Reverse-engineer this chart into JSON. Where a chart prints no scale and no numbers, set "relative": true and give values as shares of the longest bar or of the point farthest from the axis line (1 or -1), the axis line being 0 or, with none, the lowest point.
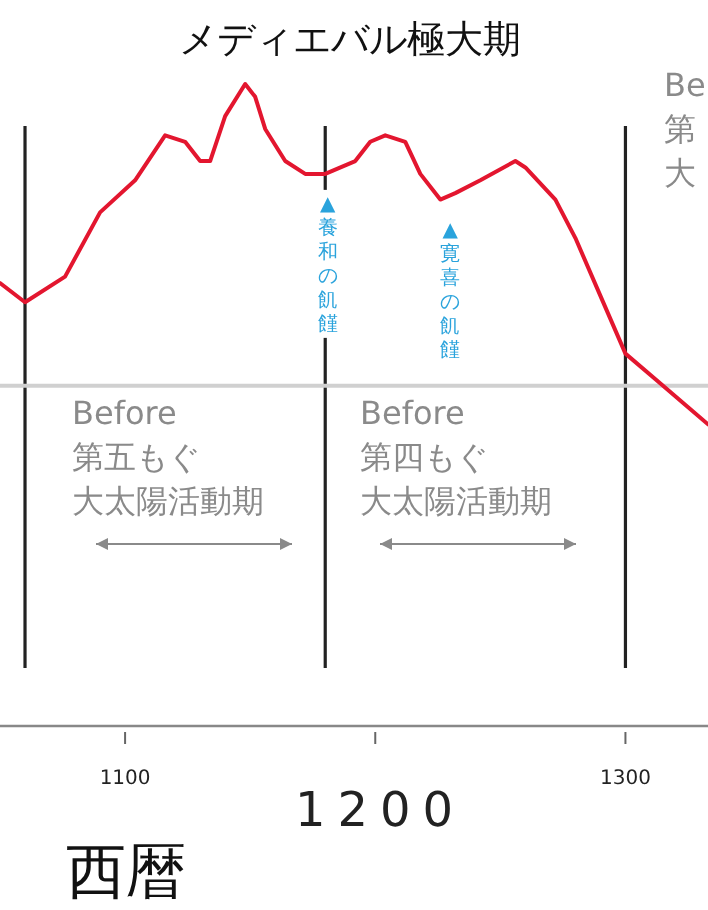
{
  "chart_data": {
    "type": "line",
    "title": "メディエバル極大期",
    "xlabel": "西暦",
    "relative": true,
    "xlim": [
      1050,
      1333
    ],
    "xticks": [
      1100,
      {
        "value": 1200,
        "label": null
      },
      1300
    ],
    "x": [
      1050,
      1060,
      1076,
      1090,
      1104,
      1116,
      1124,
      1130,
      1134,
      1140,
      1148,
      1152,
      1156,
      1164,
      1172,
      1180,
      1192,
      1198,
      1204,
      1212,
      1218,
      1226,
      1232,
      1242,
      1256,
      1260,
      1272,
      1280,
      1290,
      1300,
      1312,
      1324,
      1333
    ],
    "series": [
      {
        "color": "#e3162f",
        "values": [
          0.69,
          0.66,
          0.7,
          0.8,
          0.85,
          0.92,
          0.91,
          0.88,
          0.88,
          0.95,
          1.0,
          0.98,
          0.93,
          0.88,
          0.86,
          0.86,
          0.88,
          0.91,
          0.92,
          0.91,
          0.86,
          0.82,
          0.83,
          0.85,
          0.88,
          0.87,
          0.82,
          0.76,
          0.67,
          0.58,
          0.54,
          0.5,
          0.47
        ]
      }
    ],
    "ref_lines": [
      {
        "axis": "x",
        "value": 1060,
        "color": "#222222"
      },
      {
        "axis": "x",
        "value": 1180,
        "color": "#222222"
      },
      {
        "axis": "x",
        "value": 1300,
        "color": "#222222"
      },
      {
        "axis": "y",
        "value": 0.53,
        "color": "#d0d0d0"
      }
    ],
    "annotations": [
      {
        "text": "▲養和の飢饉",
        "x": 1181,
        "y": 0.86
      },
      {
        "text": "▲寛喜の飢饉",
        "x": 1230,
        "y": 0.82
      },
      "Before\n第五もぐ大太陽活動期",
      "Before\n第四もぐ大太陽活動期",
      "Be\n第大",
      "1200"
    ],
    "grid": false,
    "marker": "none",
    "line_style": "solid"
  }
}
